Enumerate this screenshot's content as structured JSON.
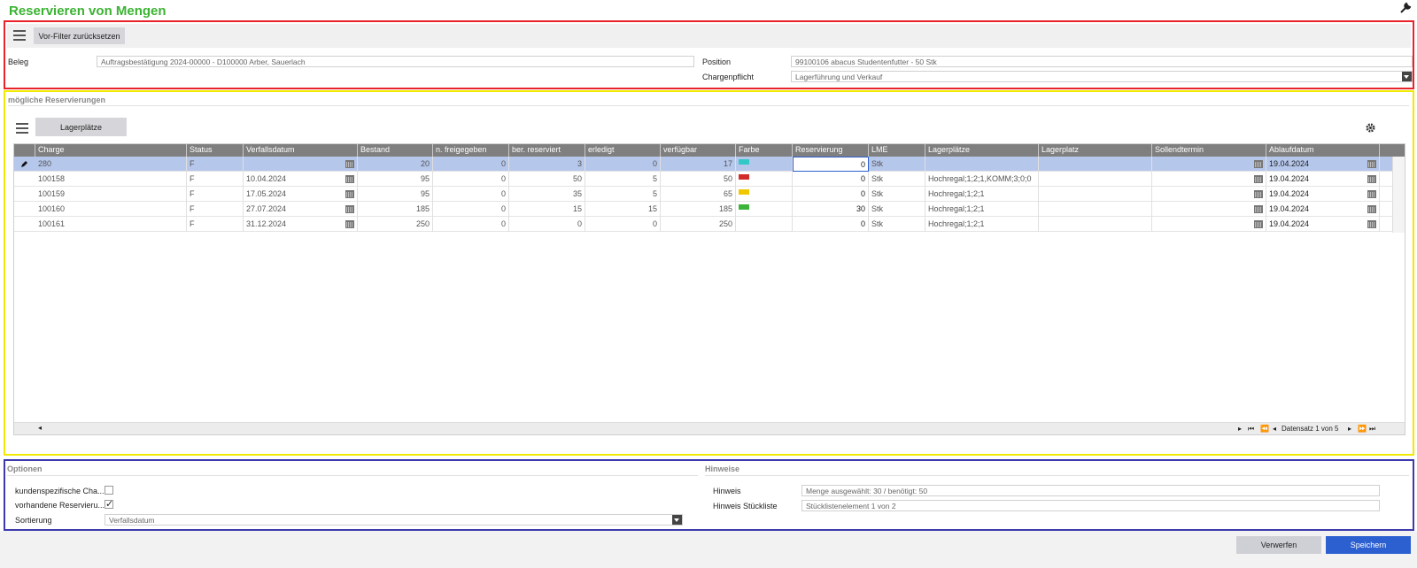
{
  "title": "Reservieren von Mengen",
  "prefilter": {
    "reset_label": "Vor-Filter zurücksetzen",
    "beleg_label": "Beleg",
    "beleg_value": "Auftragsbestätigung 2024-00000 - D100000 Arber, Sauerlach",
    "position_label": "Position",
    "position_value": "99100106 abacus Studentenfutter - 50 Stk",
    "chargenpflicht_label": "Chargenpflicht",
    "chargenpflicht_value": "Lagerführung und Verkauf"
  },
  "reservations": {
    "heading": "mögliche Reservierungen",
    "lagerplaetze_button": "Lagerplätze",
    "columns": [
      "Charge",
      "Status",
      "Verfallsdatum",
      "Bestand",
      "n. freigegeben",
      "ber. reserviert",
      "erledigt",
      "verfügbar",
      "Farbe",
      "Reservierung",
      "LME",
      "Lagerplätze",
      "Lagerplatz",
      "Sollendtermin",
      "Ablaufdatum"
    ],
    "rows": [
      {
        "charge": "280",
        "status": "F",
        "verfall": "",
        "bestand": "20",
        "nfrei": "0",
        "berres": "3",
        "erledigt": "0",
        "verfuegbar": "17",
        "farbe": "#33c8c8",
        "reservierung": "0",
        "lme": "Stk",
        "lagerplaetze": "",
        "lagerplatz": "",
        "soll": "",
        "ablauf": "19.04.2024"
      },
      {
        "charge": "100158",
        "status": "F",
        "verfall": "10.04.2024",
        "bestand": "95",
        "nfrei": "0",
        "berres": "50",
        "erledigt": "5",
        "verfuegbar": "50",
        "farbe": "#d32a2a",
        "reservierung": "0",
        "lme": "Stk",
        "lagerplaetze": "Hochregal;1;2;1,KOMM;3;0;0",
        "lagerplatz": "",
        "soll": "",
        "ablauf": "19.04.2024"
      },
      {
        "charge": "100159",
        "status": "F",
        "verfall": "17.05.2024",
        "bestand": "95",
        "nfrei": "0",
        "berres": "35",
        "erledigt": "5",
        "verfuegbar": "65",
        "farbe": "#f0c800",
        "reservierung": "0",
        "lme": "Stk",
        "lagerplaetze": "Hochregal;1;2;1",
        "lagerplatz": "",
        "soll": "",
        "ablauf": "19.04.2024"
      },
      {
        "charge": "100160",
        "status": "F",
        "verfall": "27.07.2024",
        "bestand": "185",
        "nfrei": "0",
        "berres": "15",
        "erledigt": "15",
        "verfuegbar": "185",
        "farbe": "#3cb43c",
        "reservierung": "30",
        "lme": "Stk",
        "lagerplaetze": "Hochregal;1;2;1",
        "lagerplatz": "",
        "soll": "",
        "ablauf": "19.04.2024"
      },
      {
        "charge": "100161",
        "status": "F",
        "verfall": "31.12.2024",
        "bestand": "250",
        "nfrei": "0",
        "berres": "0",
        "erledigt": "0",
        "verfuegbar": "250",
        "farbe": "",
        "reservierung": "0",
        "lme": "Stk",
        "lagerplaetze": "Hochregal;1;2;1",
        "lagerplatz": "",
        "soll": "",
        "ablauf": "19.04.2024"
      }
    ],
    "pager_text": "Datensatz 1 von 5"
  },
  "options": {
    "heading": "Optionen",
    "kundenspezifisch_label": "kundenspezifische Cha...",
    "kundenspezifisch_checked": false,
    "vorhandene_label": "vorhandene Reservieru...",
    "vorhandene_checked": true,
    "sortierung_label": "Sortierung",
    "sortierung_value": "Verfallsdatum"
  },
  "hints": {
    "heading": "Hinweise",
    "hinweis_label": "Hinweis",
    "hinweis_value": "Menge ausgewählt: 30 / benötigt: 50",
    "stueckliste_label": "Hinweis Stückliste",
    "stueckliste_value": "Stücklistenelement 1 von 2"
  },
  "footer": {
    "discard_label": "Verwerfen",
    "save_label": "Speichern"
  },
  "colors": {
    "title": "#3bb332",
    "save_button": "#2c5fcf",
    "selected_row": "#b6c7ec"
  }
}
